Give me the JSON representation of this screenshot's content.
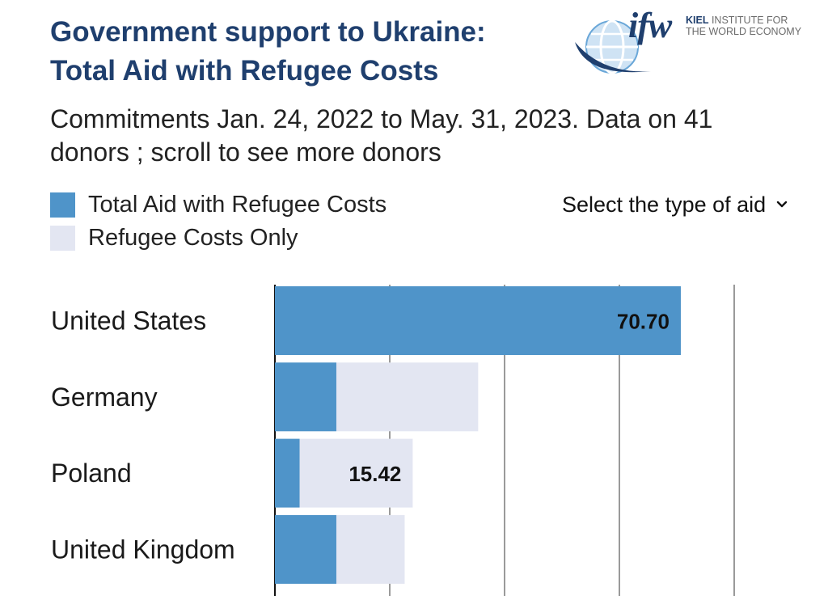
{
  "header": {
    "title_line1": "Government support to Ukraine:",
    "title_line2": "Total Aid with Refugee Costs"
  },
  "logo": {
    "mark": "ifw",
    "line1_bold": "KIEL",
    "line1_rest": " INSTITUTE FOR",
    "line2": "THE WORLD ECONOMY"
  },
  "subtitle": {
    "line1": "Commitments Jan. 24, 2022 to May. 31, 2023. Data on 41",
    "line2": "donors ; scroll to see more donors"
  },
  "legend": [
    {
      "label": "Total Aid with Refugee Costs",
      "color": "#4f94c9"
    },
    {
      "label": "Refugee Costs Only",
      "color": "#e3e6f2"
    }
  ],
  "aid_selector": {
    "label": "Select the type of aid",
    "icon": "chevron-down-icon"
  },
  "chart_data": {
    "type": "bar",
    "orientation": "horizontal",
    "stacked": false,
    "title": "Government support to Ukraine: Total Aid with Refugee Costs",
    "xlim": [
      0,
      80
    ],
    "gridlines_at": [
      0,
      20,
      40,
      60,
      80
    ],
    "grid": true,
    "categories": [
      "United States",
      "Germany",
      "Poland",
      "United Kingdom"
    ],
    "series": [
      {
        "name": "Total Aid with Refugee Costs",
        "color": "#4f94c9",
        "values": [
          70.7,
          10.7,
          4.3,
          10.7
        ]
      },
      {
        "name": "Refugee Costs Only",
        "color": "#e3e6f2",
        "values": [
          0,
          24.7,
          19.7,
          11.9
        ]
      }
    ],
    "data_labels": [
      "70.70",
      "",
      "15.42",
      ""
    ]
  }
}
